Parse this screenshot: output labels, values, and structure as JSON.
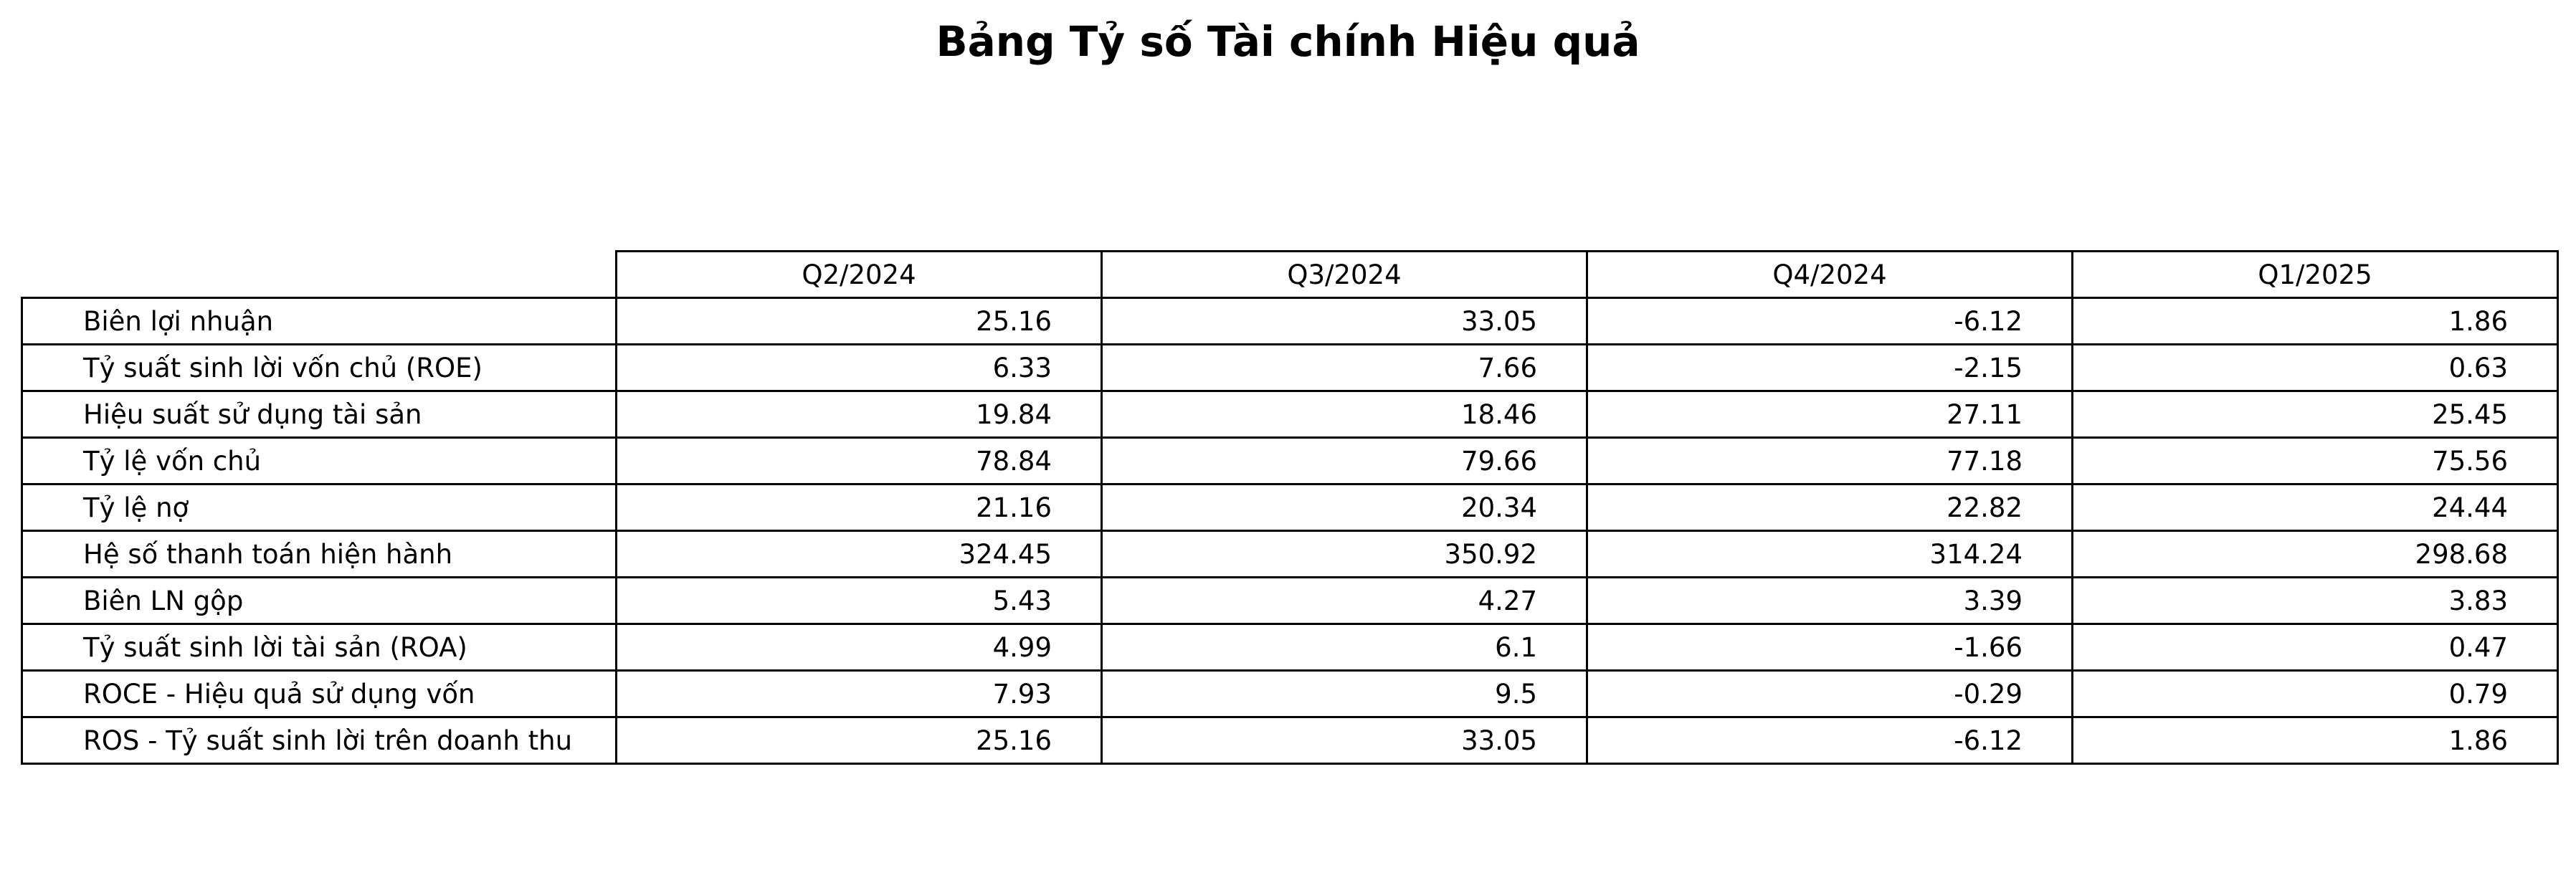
{
  "chart_data": {
    "type": "table",
    "title": "Bảng Tỷ số Tài chính Hiệu quả",
    "columns": [
      "Q2/2024",
      "Q3/2024",
      "Q4/2024",
      "Q1/2025"
    ],
    "rows": [
      {
        "label": "Biên lợi nhuận",
        "values": [
          "25.16",
          "33.05",
          "-6.12",
          "1.86"
        ]
      },
      {
        "label": "Tỷ suất sinh lời vốn chủ (ROE)",
        "values": [
          "6.33",
          "7.66",
          "-2.15",
          "0.63"
        ]
      },
      {
        "label": "Hiệu suất sử dụng tài sản",
        "values": [
          "19.84",
          "18.46",
          "27.11",
          "25.45"
        ]
      },
      {
        "label": "Tỷ lệ vốn chủ",
        "values": [
          "78.84",
          "79.66",
          "77.18",
          "75.56"
        ]
      },
      {
        "label": "Tỷ lệ nợ",
        "values": [
          "21.16",
          "20.34",
          "22.82",
          "24.44"
        ]
      },
      {
        "label": "Hệ số thanh toán hiện hành",
        "values": [
          "324.45",
          "350.92",
          "314.24",
          "298.68"
        ]
      },
      {
        "label": "Biên LN gộp",
        "values": [
          "5.43",
          "4.27",
          "3.39",
          "3.83"
        ]
      },
      {
        "label": "Tỷ suất sinh lời tài sản (ROA)",
        "values": [
          "4.99",
          "6.1",
          "-1.66",
          "0.47"
        ]
      },
      {
        "label": "ROCE - Hiệu quả sử dụng vốn",
        "values": [
          "7.93",
          "9.5",
          "-0.29",
          "0.79"
        ]
      },
      {
        "label": "ROS - Tỷ suất sinh lời trên doanh thu",
        "values": [
          "25.16",
          "33.05",
          "-6.12",
          "1.86"
        ]
      }
    ]
  }
}
